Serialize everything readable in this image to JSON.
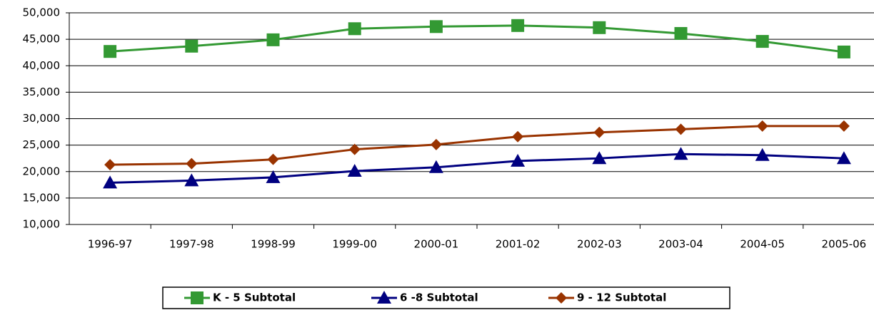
{
  "chart_data": {
    "type": "line",
    "categories": [
      "1996-97",
      "1997-98",
      "1998-99",
      "1999-00",
      "2000-01",
      "2001-02",
      "2002-03",
      "2003-04",
      "2004-05",
      "2005-06"
    ],
    "series": [
      {
        "name": "K - 5 Subtotal",
        "color": "#339933",
        "marker": "square",
        "values": [
          42700,
          43700,
          44900,
          47000,
          47400,
          47600,
          47200,
          46100,
          44600,
          42600
        ]
      },
      {
        "name": "6 -8 Subtotal",
        "color": "#000080",
        "marker": "triangle",
        "values": [
          17900,
          18300,
          18900,
          20100,
          20800,
          22000,
          22500,
          23300,
          23100,
          22500
        ]
      },
      {
        "name": "9 - 12 Subtotal",
        "color": "#993300",
        "marker": "diamond",
        "values": [
          21300,
          21500,
          22300,
          24200,
          25100,
          26600,
          27400,
          28000,
          28600,
          28600
        ]
      }
    ],
    "ylim": [
      10000,
      50000
    ],
    "yticks": [
      {
        "value": 10000,
        "label": "10,000"
      },
      {
        "value": 15000,
        "label": "15,000"
      },
      {
        "value": 20000,
        "label": "20,000"
      },
      {
        "value": 25000,
        "label": "25,000"
      },
      {
        "value": 30000,
        "label": "30,000"
      },
      {
        "value": 35000,
        "label": "35,000"
      },
      {
        "value": 40000,
        "label": "40,000"
      },
      {
        "value": 45000,
        "label": "45,000"
      },
      {
        "value": 50000,
        "label": "50,000"
      }
    ],
    "grid": true,
    "legend": "bottom"
  }
}
